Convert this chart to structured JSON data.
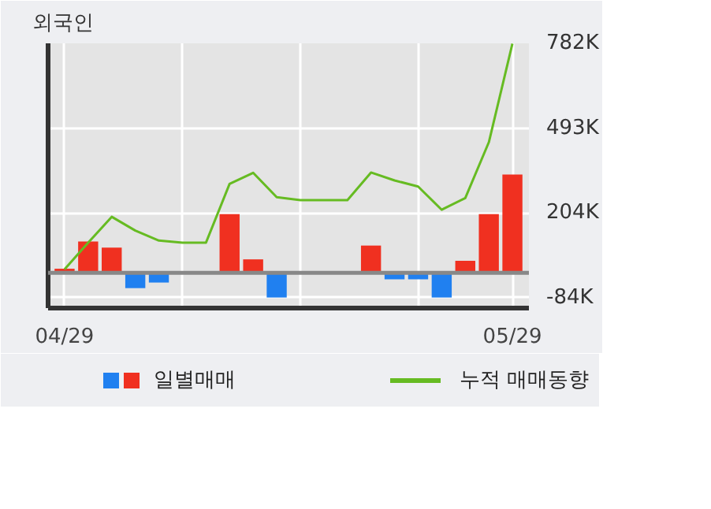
{
  "chart_data": {
    "type": "bar",
    "title": "외국인",
    "categories": [
      "04/29",
      null,
      null,
      null,
      null,
      null,
      null,
      null,
      null,
      null,
      null,
      null,
      null,
      null,
      null,
      null,
      null,
      null,
      null,
      "05/29"
    ],
    "series": [
      {
        "name": "일별매매",
        "colors": [
          "#f03020",
          "#f03020",
          "#f03020",
          "#2080f0",
          "#2080f0",
          "#f03020",
          "#f03020",
          "#f03020",
          "#f03020",
          "#2080f0",
          "#f03020",
          "#f03020",
          "#f03020",
          "#f03020",
          "#2080f0",
          "#2080f0",
          "#2080f0",
          "#f03020",
          "#f03020",
          "#f03020"
        ],
        "values": [
          14,
          107,
          86,
          -52,
          -33,
          0,
          0,
          200,
          46,
          -84,
          0,
          0,
          0,
          93,
          -22,
          -22,
          -84,
          41,
          200,
          335
        ]
      },
      {
        "name": "누적 매매동향",
        "type": "line",
        "color": "#66bb22",
        "values": [
          12,
          103,
          191,
          144,
          110,
          103,
          103,
          303,
          341,
          258,
          248,
          248,
          248,
          342,
          315,
          294,
          215,
          255,
          445,
          781
        ]
      }
    ],
    "ylim": [
      -120,
      782
    ],
    "yticks": [
      {
        "value": 782,
        "label": "782K"
      },
      {
        "value": 493,
        "label": "493K"
      },
      {
        "value": 204,
        "label": "204K"
      },
      {
        "value": -84,
        "label": "-84K"
      }
    ],
    "ref_lines": [
      {
        "axis": "y",
        "value": 0,
        "color": "#888888"
      }
    ],
    "grid": true,
    "legend": "bottom"
  }
}
